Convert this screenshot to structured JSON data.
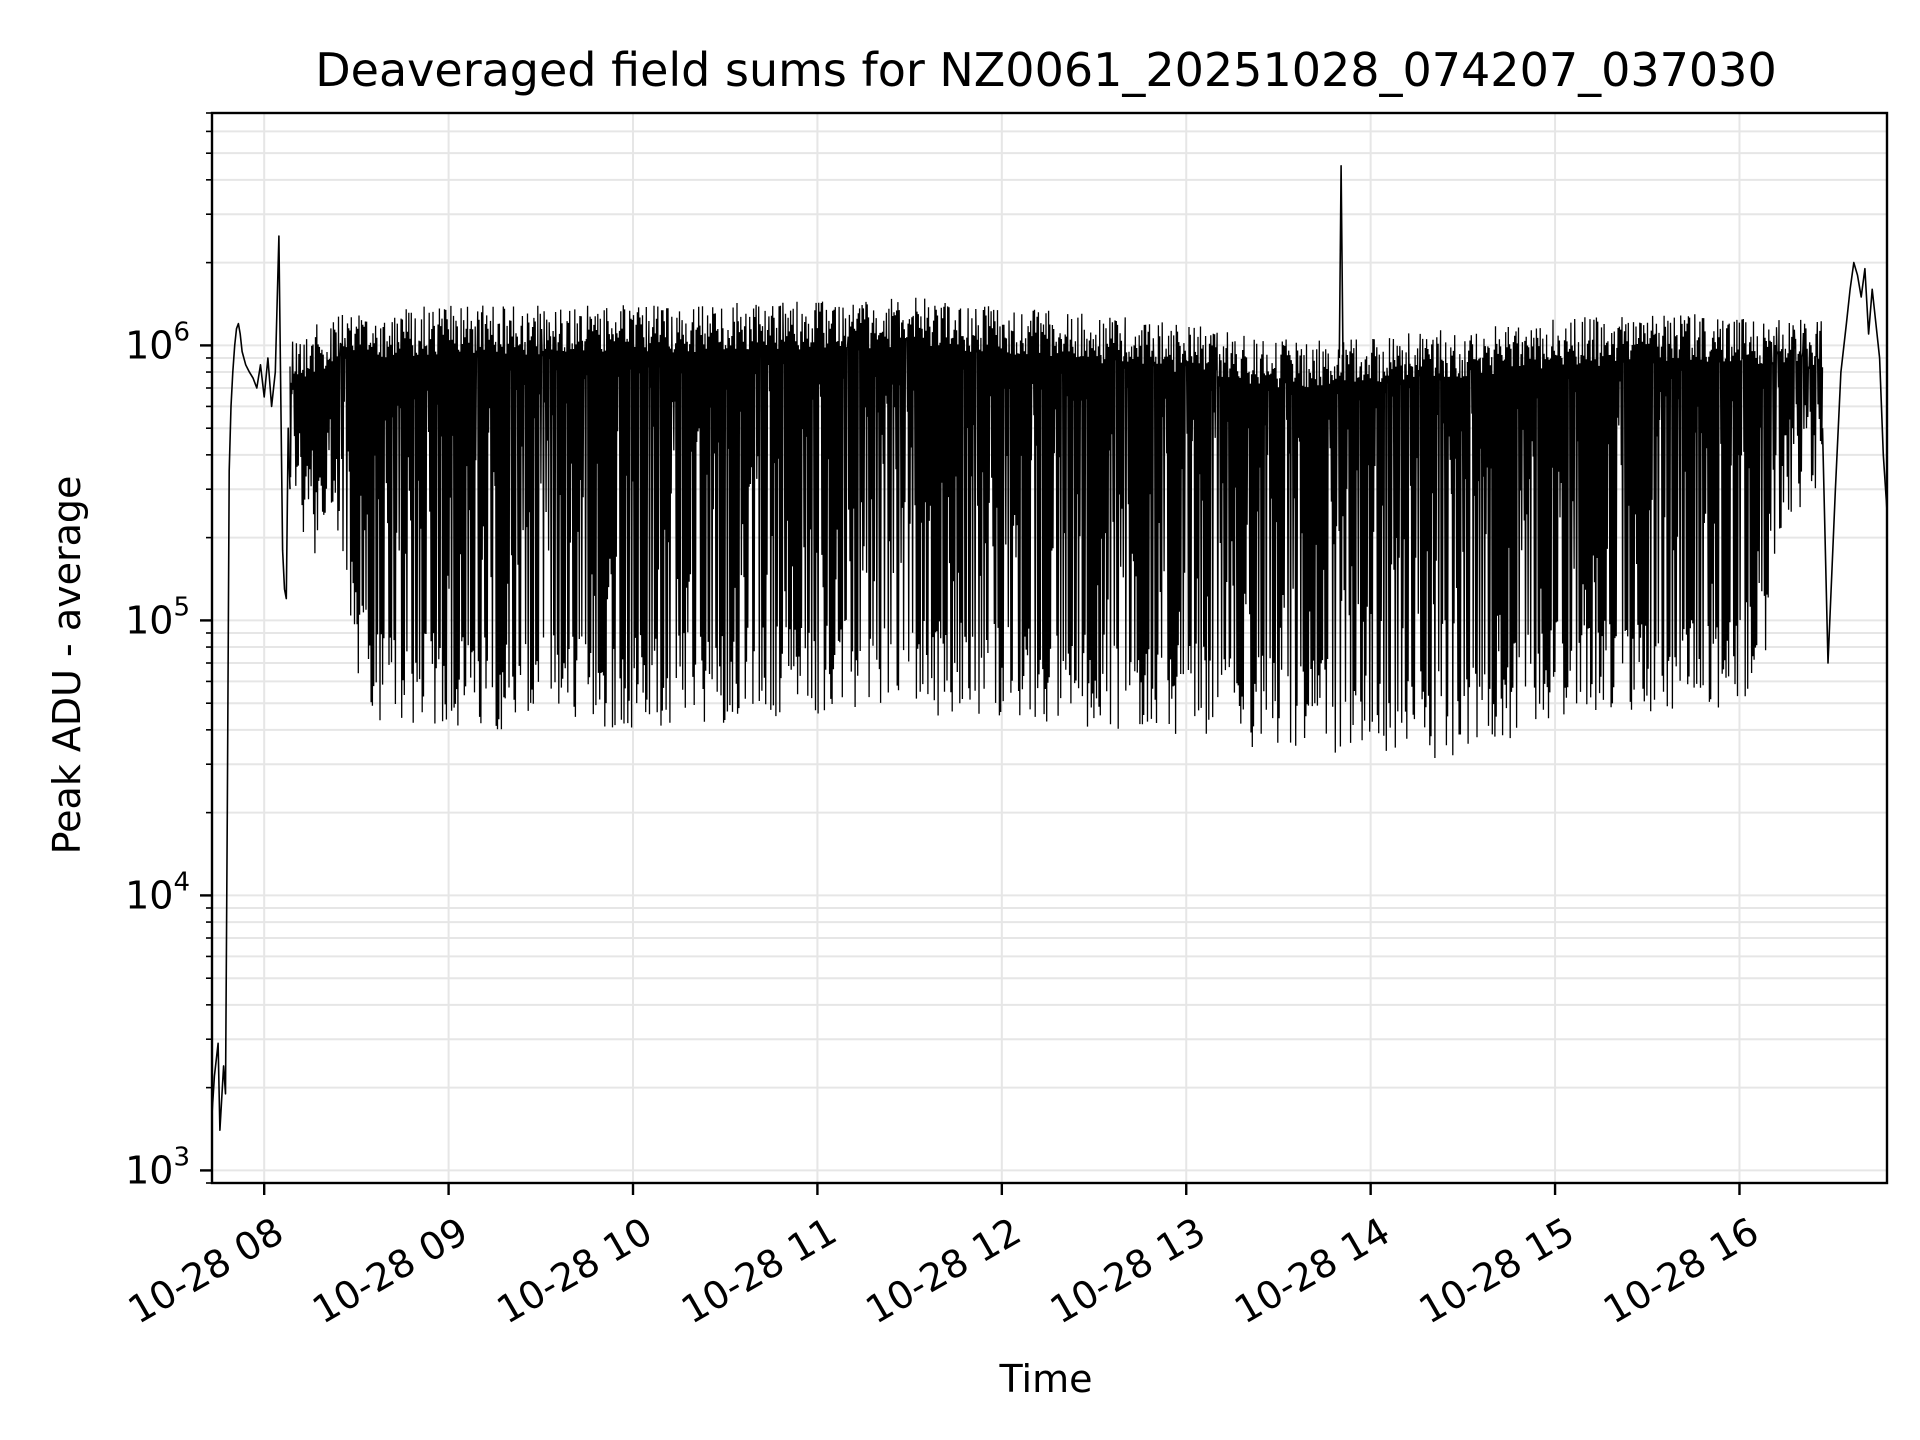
{
  "chart_data": {
    "type": "line",
    "title": "Deaveraged field sums for NZ0061_20251028_074207_037030",
    "xlabel": "Time",
    "ylabel": "Peak ADU - average",
    "yscale": "log",
    "ylim": [
      900,
      7000000
    ],
    "xlim_hours": [
      7.717,
      16.8
    ],
    "grid": true,
    "series_color": "#000000",
    "grid_color": "#e6e6e6",
    "x_ticks": [
      {
        "value": 8,
        "label": "10-28 08"
      },
      {
        "value": 9,
        "label": "10-28 09"
      },
      {
        "value": 10,
        "label": "10-28 10"
      },
      {
        "value": 11,
        "label": "10-28 11"
      },
      {
        "value": 12,
        "label": "10-28 12"
      },
      {
        "value": 13,
        "label": "10-28 13"
      },
      {
        "value": 14,
        "label": "10-28 14"
      },
      {
        "value": 15,
        "label": "10-28 15"
      },
      {
        "value": 16,
        "label": "10-28 16"
      }
    ],
    "y_ticks": [
      {
        "value": 1000,
        "base": "10",
        "exp": "3"
      },
      {
        "value": 10000,
        "base": "10",
        "exp": "4"
      },
      {
        "value": 100000,
        "base": "10",
        "exp": "5"
      },
      {
        "value": 1000000,
        "base": "10",
        "exp": "6"
      }
    ],
    "series": [
      {
        "name": "Peak ADU - average",
        "segments": [
          {
            "x": [
              7.717,
              7.73,
              7.75,
              7.76,
              7.78,
              7.79,
              7.8,
              7.81,
              7.82,
              7.83,
              7.84,
              7.85,
              7.86,
              7.87,
              7.88,
              7.9,
              7.92,
              7.94,
              7.96,
              7.98,
              8.0,
              8.02,
              8.04,
              8.06,
              8.08,
              8.1,
              8.11,
              8.12,
              8.13,
              8.14
            ],
            "y": [
              1600,
              2200,
              2900,
              1400,
              2400,
              1900,
              20000,
              350000,
              600000,
              800000,
              1000000,
              1150000,
              1200000,
              1100000,
              950000,
              850000,
              800000,
              760000,
              700000,
              850000,
              650000,
              900000,
              600000,
              800000,
              2500000,
              180000,
              130000,
              120000,
              500000,
              300000
            ]
          },
          {
            "x": [
              13.83,
              13.84,
              13.85
            ],
            "y": [
              900000,
              4500000,
              900000
            ]
          },
          {
            "x": [
              16.45,
              16.48,
              16.52,
              16.55,
              16.58,
              16.6,
              16.62,
              16.64,
              16.66,
              16.68,
              16.7,
              16.72,
              16.74,
              16.76,
              16.78,
              16.8
            ],
            "y": [
              500000,
              70000,
              300000,
              800000,
              1200000,
              1600000,
              2000000,
              1800000,
              1500000,
              1900000,
              1100000,
              1600000,
              1200000,
              900000,
              400000,
              250000
            ]
          }
        ],
        "band": {
          "x_start": 8.14,
          "x_end": 16.45,
          "upper": {
            "x": [
              8.14,
              8.5,
              9.0,
              10.0,
              11.0,
              11.5,
              12.0,
              12.5,
              13.0,
              13.5,
              14.0,
              14.5,
              15.0,
              15.5,
              16.0,
              16.45
            ],
            "y": [
              1100000,
              1350000,
              1400000,
              1400000,
              1450000,
              1500000,
              1400000,
              1300000,
              1200000,
              1050000,
              1100000,
              1150000,
              1250000,
              1300000,
              1300000,
              1250000
            ]
          },
          "lower": {
            "x": [
              8.14,
              8.4,
              8.5,
              8.6,
              9.0,
              10.0,
              11.0,
              12.0,
              12.5,
              13.0,
              13.5,
              14.0,
              14.3,
              14.8,
              15.0,
              15.5,
              16.0,
              16.15,
              16.2,
              16.45
            ],
            "y": [
              200000,
              150000,
              60000,
              42000,
              40000,
              40000,
              45000,
              45000,
              40000,
              38000,
              33000,
              32000,
              30000,
              38000,
              45000,
              45000,
              45000,
              80000,
              200000,
              300000
            ]
          }
        }
      }
    ]
  }
}
